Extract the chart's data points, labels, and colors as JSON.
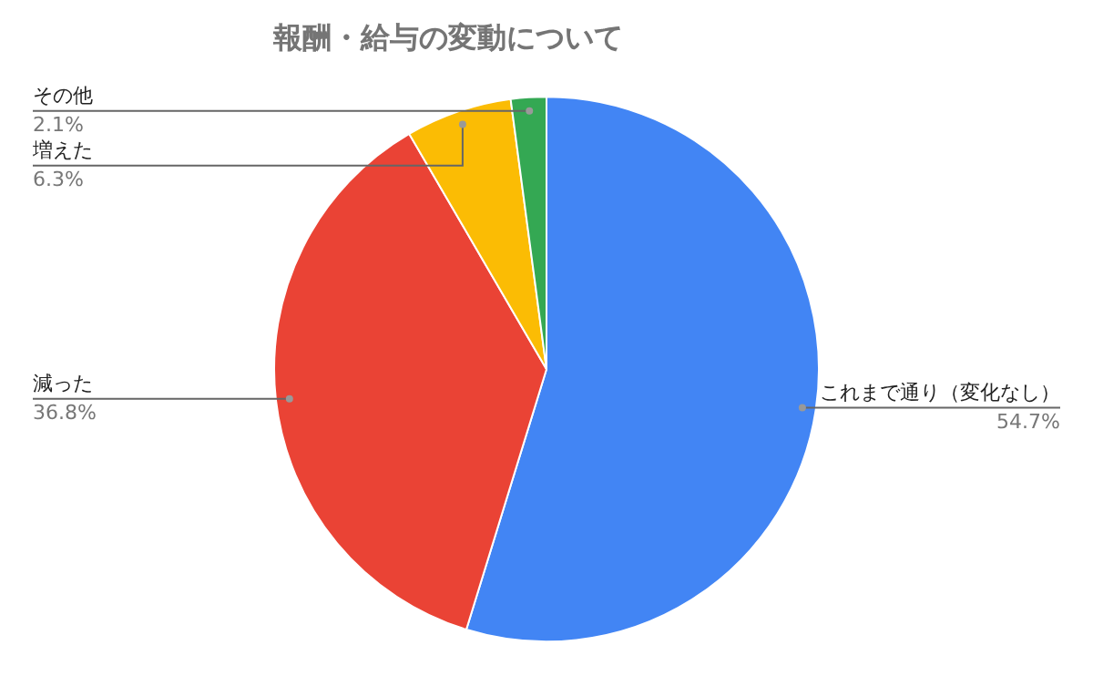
{
  "chart_data": {
    "type": "pie",
    "title": "報酬・給与の変動について",
    "categories": [
      "これまで通り（変化なし）",
      "減った",
      "増えた",
      "その他"
    ],
    "values": [
      54.7,
      36.8,
      6.3,
      2.1
    ],
    "value_labels": [
      "54.7%",
      "36.8%",
      "6.3%",
      "2.1%"
    ],
    "colors": [
      "#4285f4",
      "#ea4335",
      "#fbbc04",
      "#34a853"
    ],
    "legend": false
  }
}
